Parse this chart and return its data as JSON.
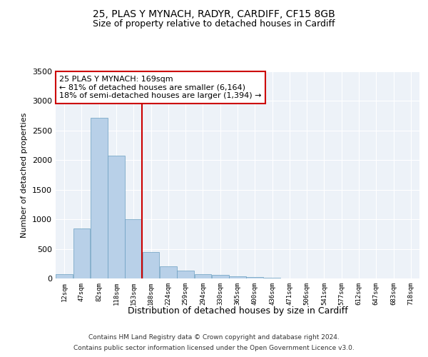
{
  "title1": "25, PLAS Y MYNACH, RADYR, CARDIFF, CF15 8GB",
  "title2": "Size of property relative to detached houses in Cardiff",
  "xlabel": "Distribution of detached houses by size in Cardiff",
  "ylabel": "Number of detached properties",
  "categories": [
    "12sqm",
    "47sqm",
    "82sqm",
    "118sqm",
    "153sqm",
    "188sqm",
    "224sqm",
    "259sqm",
    "294sqm",
    "330sqm",
    "365sqm",
    "400sqm",
    "436sqm",
    "471sqm",
    "506sqm",
    "541sqm",
    "577sqm",
    "612sqm",
    "647sqm",
    "683sqm",
    "718sqm"
  ],
  "values": [
    75,
    850,
    2720,
    2070,
    1000,
    450,
    200,
    135,
    75,
    60,
    40,
    30,
    10,
    5,
    3,
    2,
    1,
    1,
    0,
    0,
    0
  ],
  "bar_color": "#b8d0e8",
  "bar_edge_color": "#6a9ec0",
  "bar_width": 0.98,
  "vline_x": 4.5,
  "vline_color": "#cc0000",
  "annotation_text": "25 PLAS Y MYNACH: 169sqm\n← 81% of detached houses are smaller (6,164)\n18% of semi-detached houses are larger (1,394) →",
  "annotation_box_color": "#cc0000",
  "ylim": [
    0,
    3500
  ],
  "yticks": [
    0,
    500,
    1000,
    1500,
    2000,
    2500,
    3000,
    3500
  ],
  "bg_color": "#edf2f8",
  "footer1": "Contains HM Land Registry data © Crown copyright and database right 2024.",
  "footer2": "Contains public sector information licensed under the Open Government Licence v3.0."
}
